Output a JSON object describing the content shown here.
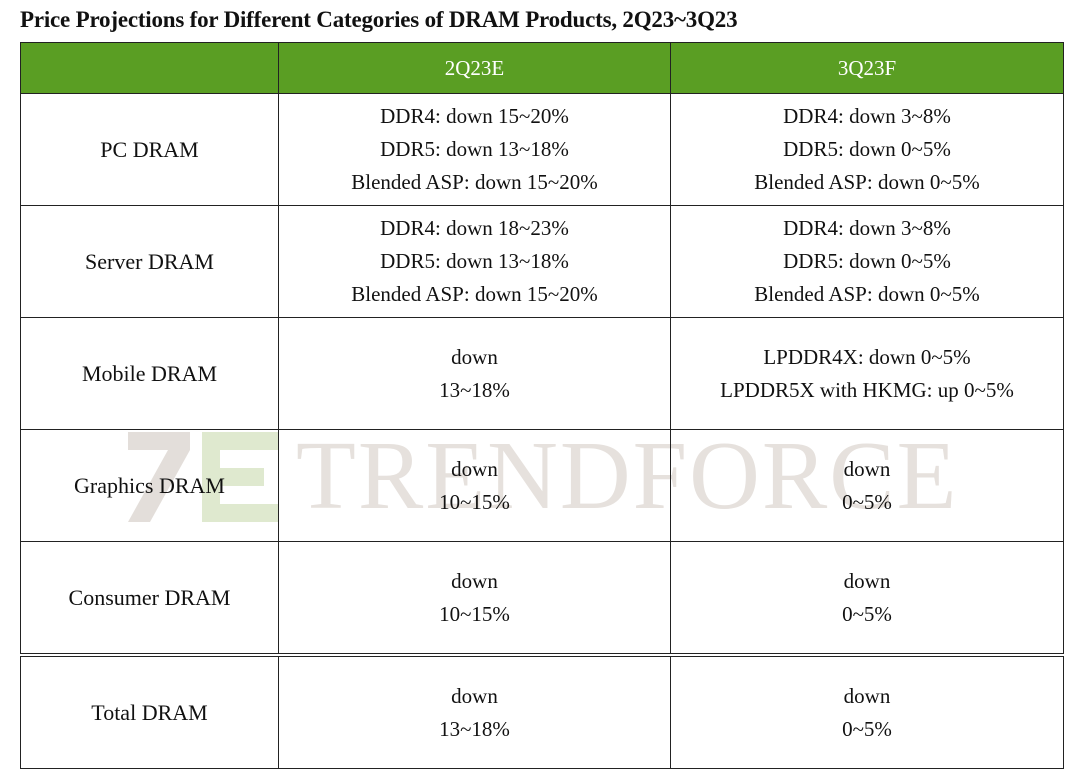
{
  "title": "Price Projections for Different Categories of DRAM Products, 2Q23~3Q23",
  "header": {
    "blank": "",
    "col1": "2Q23E",
    "col2": "3Q23F"
  },
  "colors": {
    "header_bg": "#5a9e23",
    "header_text": "#ffffff",
    "watermark": "#e6e1dd"
  },
  "rows": [
    {
      "category": "PC DRAM",
      "q2": [
        "DDR4: down 15~20%",
        "DDR5: down 13~18%",
        "Blended ASP: down 15~20%"
      ],
      "q3": [
        "DDR4: down 3~8%",
        "DDR5: down 0~5%",
        "Blended ASP: down 0~5%"
      ]
    },
    {
      "category": "Server DRAM",
      "q2": [
        "DDR4: down 18~23%",
        "DDR5: down 13~18%",
        "Blended ASP: down 15~20%"
      ],
      "q3": [
        "DDR4: down 3~8%",
        "DDR5: down 0~5%",
        "Blended ASP: down 0~5%"
      ]
    },
    {
      "category": "Mobile DRAM",
      "q2": [
        "down",
        "13~18%"
      ],
      "q3": [
        "LPDDR4X: down 0~5%",
        "LPDDR5X with HKMG: up 0~5%"
      ]
    },
    {
      "category": "Graphics DRAM",
      "q2": [
        "down",
        "10~15%"
      ],
      "q3": [
        "down",
        "0~5%"
      ]
    },
    {
      "category": "Consumer DRAM",
      "q2": [
        "down",
        "10~15%"
      ],
      "q3": [
        "down",
        "0~5%"
      ]
    },
    {
      "category": "Total DRAM",
      "q2": [
        "down",
        "13~18%"
      ],
      "q3": [
        "down",
        "0~5%"
      ]
    }
  ],
  "watermark": {
    "text": "TRENDFORCE",
    "icon": "trendforce-logo-icon"
  }
}
